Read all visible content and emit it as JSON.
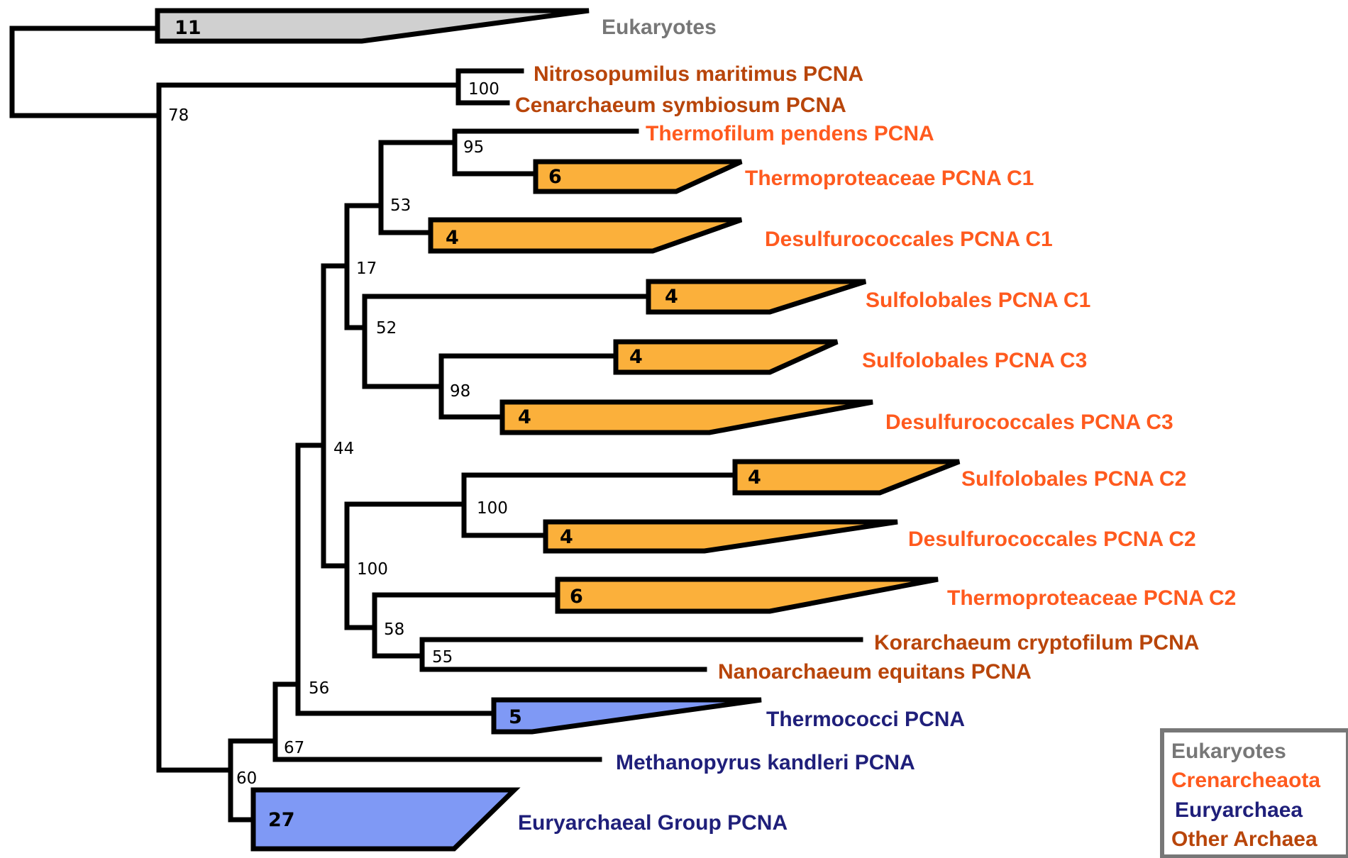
{
  "colors": {
    "eukaryotes": "#777777",
    "crenarchaeota": "#ff5a1e",
    "euryarchaea": "#1f1f7a",
    "other_archaea": "#b8450a",
    "eukaryote_fill": "#d0d0d0",
    "cren_fill": "#fbb03b",
    "eury_fill": "#7f99f5"
  },
  "taxa": {
    "eukaryotes": "Eukaryotes",
    "nitrosopumilus": "Nitrosopumilus maritimus PCNA",
    "cenarchaeum": "Cenarchaeum symbiosum PCNA",
    "thermofilum": "Thermofilum pendens PCNA",
    "thermoproteaceae_c1": "Thermoproteaceae PCNA C1",
    "desulfurococcales_c1": "Desulfurococcales PCNA C1",
    "sulfolobales_c1": "Sulfolobales PCNA C1",
    "sulfolobales_c3": "Sulfolobales PCNA C3",
    "desulfurococcales_c3": "Desulfurococcales PCNA C3",
    "sulfolobales_c2": "Sulfolobales PCNA C2",
    "desulfurococcales_c2": "Desulfurococcales PCNA C2",
    "thermoproteaceae_c2": "Thermoproteaceae PCNA C2",
    "korarchaeum": "Korarchaeum cryptofilum PCNA",
    "nanoarchaeum": "Nanoarchaeum equitans PCNA",
    "thermococci": "Thermococci PCNA",
    "methanopyrus": "Methanopyrus kandleri PCNA",
    "euryarchaeal_group": "Euryarchaeal Group PCNA"
  },
  "counts": {
    "eukaryotes": "11",
    "thermoproteaceae_c1": "6",
    "desulfurococcales_c1": "4",
    "sulfolobales_c1": "4",
    "sulfolobales_c3": "4",
    "desulfurococcales_c3": "4",
    "sulfolobales_c2": "4",
    "desulfurococcales_c2": "4",
    "thermoproteaceae_c2": "6",
    "thermococci": "5",
    "euryarchaeal_group": "27"
  },
  "support": {
    "n78": "78",
    "n100a": "100",
    "n95": "95",
    "n53": "53",
    "n17": "17",
    "n52": "52",
    "n98": "98",
    "n44": "44",
    "n100b": "100",
    "n100c": "100",
    "n58": "58",
    "n55": "55",
    "n56": "56",
    "n67": "67",
    "n60": "60"
  },
  "legend": {
    "eukaryotes": "Eukaryotes",
    "crenarchaeota": "Crenarcheaota",
    "euryarchaea": "Euryarchaea",
    "other_archaea": "Other Archaea"
  }
}
